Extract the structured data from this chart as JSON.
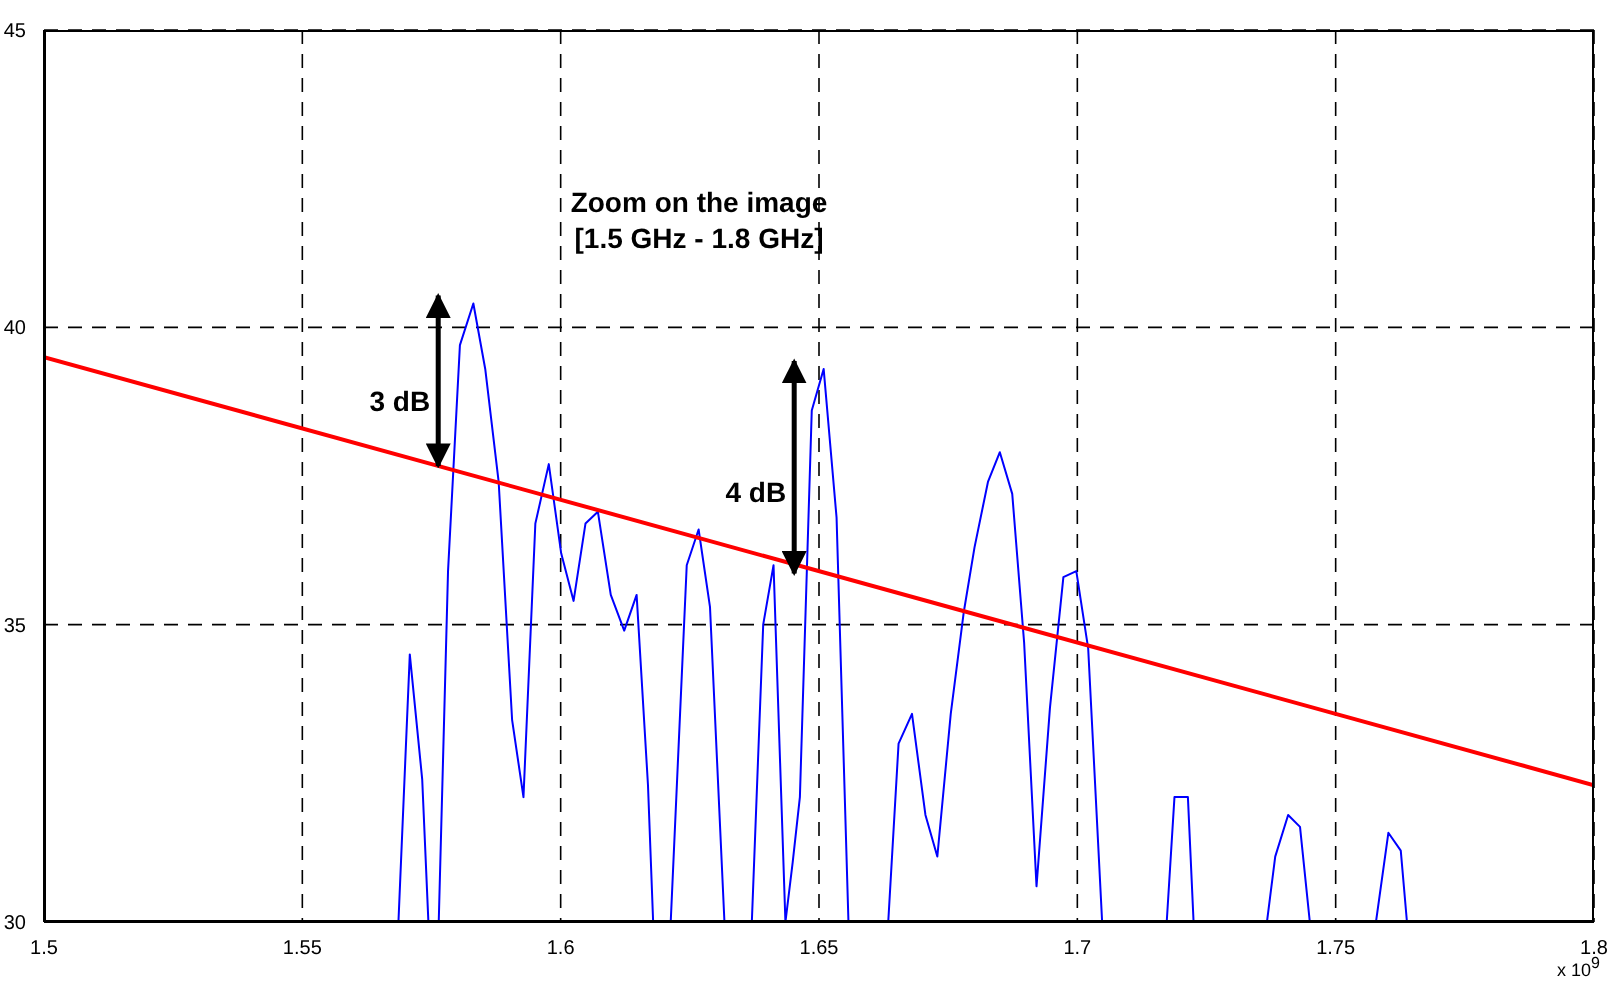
{
  "chart_data": {
    "type": "line",
    "title": "Zoom on the image",
    "subtitle": "[1.5 GHz - 1.8 GHz]",
    "annotations": [
      {
        "text": "3 dB",
        "x": 1.5763,
        "y": 37.67
      },
      {
        "text": "4 dB",
        "x": 1.6452,
        "y": 35.86
      },
      "x 10$^{9}$"
    ],
    "series": [
      {
        "color": "#0000ff",
        "x": [
          1.5686,
          1.5708,
          1.5732,
          1.5744,
          1.5754,
          1.5764,
          1.5782,
          1.5805,
          1.5831,
          1.5854,
          1.588,
          1.5906,
          1.5928,
          1.5951,
          1.5977,
          1.6001,
          1.6025,
          1.6048,
          1.6072,
          1.6097,
          1.6123,
          1.6147,
          1.6169,
          1.6179,
          1.6196,
          1.6213,
          1.6244,
          1.6267,
          1.6289,
          1.6317,
          1.6343,
          1.637,
          1.6392,
          1.6412,
          1.6435,
          1.6449,
          1.6463,
          1.6486,
          1.6509,
          1.6534,
          1.6557,
          1.6595,
          1.6634,
          1.6654,
          1.668,
          1.6706,
          1.6729,
          1.6755,
          1.678,
          1.6801,
          1.6827,
          1.685,
          1.6874,
          1.6897,
          1.6921,
          1.6947,
          1.6973,
          1.6998,
          1.7021,
          1.7048,
          1.711,
          1.7173,
          1.7188,
          1.7214,
          1.7225,
          1.7296,
          1.7367,
          1.7383,
          1.7408,
          1.7431,
          1.745,
          1.7514,
          1.7578,
          1.7602,
          1.7626,
          1.7638
        ],
        "values": [
          30,
          34.5,
          32.4,
          30,
          null,
          30,
          35.9,
          39.7,
          40.4,
          39.3,
          37.4,
          33.4,
          32.1,
          36.7,
          37.7,
          36.2,
          35.4,
          36.7,
          36.9,
          35.5,
          34.9,
          35.5,
          32.3,
          30,
          null,
          30,
          36.0,
          36.6,
          35.3,
          30,
          null,
          30,
          35.0,
          36.0,
          30,
          31.0,
          32.1,
          38.6,
          39.3,
          36.8,
          30,
          null,
          30,
          33.0,
          33.5,
          31.8,
          31.1,
          33.5,
          35.2,
          36.3,
          37.4,
          37.9,
          37.2,
          34.7,
          30.6,
          33.6,
          35.8,
          35.9,
          34.6,
          30,
          null,
          30,
          32.1,
          32.1,
          30,
          null,
          30,
          31.1,
          31.8,
          31.6,
          30,
          null,
          30,
          31.5,
          31.2,
          30
        ]
      },
      {
        "color": "#ff0000",
        "x": [
          1.5,
          1.8
        ],
        "values": [
          39.5,
          32.3
        ]
      }
    ],
    "xlim": [
      1.5,
      1.8
    ],
    "xticks": [
      1.5,
      1.55,
      1.6,
      1.65,
      1.7,
      1.75,
      1.8
    ],
    "ylim": [
      30,
      45
    ],
    "yticks": [
      30,
      35,
      40,
      45
    ],
    "grid": true,
    "marker": "none",
    "line_style": "solid"
  }
}
